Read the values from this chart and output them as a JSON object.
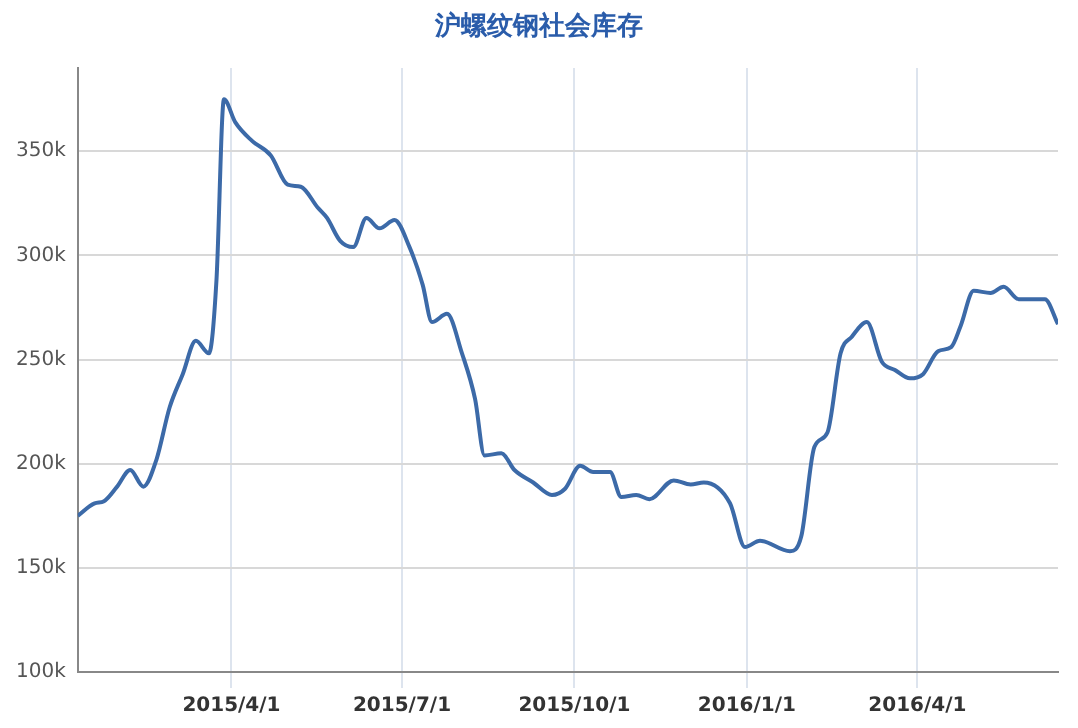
{
  "chart_data": {
    "type": "line",
    "title": "沪螺纹钢社会库存",
    "x": [
      "2015-01-09",
      "2015-01-18",
      "2015-01-23",
      "2015-01-30",
      "2015-02-06",
      "2015-02-13",
      "2015-02-20",
      "2015-02-27",
      "2015-03-06",
      "2015-03-13",
      "2015-03-20",
      "2015-03-24",
      "2015-03-28",
      "2015-04-03",
      "2015-04-12",
      "2015-04-22",
      "2015-05-01",
      "2015-05-08",
      "2015-05-17",
      "2015-05-22",
      "2015-05-29",
      "2015-06-05",
      "2015-06-12",
      "2015-06-19",
      "2015-06-27",
      "2015-07-05",
      "2015-07-12",
      "2015-07-17",
      "2015-07-25",
      "2015-08-02",
      "2015-08-09",
      "2015-08-14",
      "2015-08-23",
      "2015-08-30",
      "2015-09-09",
      "2015-09-19",
      "2015-09-26",
      "2015-10-04",
      "2015-10-11",
      "2015-10-20",
      "2015-10-26",
      "2015-11-03",
      "2015-11-10",
      "2015-11-23",
      "2015-12-02",
      "2015-12-09",
      "2015-12-23",
      "2015-12-31",
      "2016-01-08",
      "2016-01-24",
      "2016-01-30",
      "2016-02-06",
      "2016-02-13",
      "2016-02-20",
      "2016-02-26",
      "2016-03-05",
      "2016-03-13",
      "2016-03-20",
      "2016-03-28",
      "2016-04-04",
      "2016-04-12",
      "2016-04-19",
      "2016-04-24",
      "2016-05-01",
      "2016-05-10",
      "2016-05-17",
      "2016-05-25",
      "2016-06-08",
      "2016-06-15"
    ],
    "series": [
      {
        "color": "#3c6aa8",
        "values": [
          175000,
          181000,
          182000,
          189000,
          197000,
          189000,
          202000,
          227000,
          243000,
          259000,
          253000,
          288000,
          375000,
          364000,
          355000,
          348000,
          334000,
          333000,
          323000,
          318000,
          307000,
          304000,
          318000,
          313000,
          317000,
          304000,
          286000,
          268000,
          272000,
          253000,
          231000,
          204000,
          205000,
          197000,
          191000,
          185000,
          188000,
          199000,
          196000,
          196000,
          184000,
          185000,
          183000,
          192000,
          190000,
          191000,
          181000,
          160000,
          163000,
          158000,
          165000,
          208000,
          215000,
          253000,
          261000,
          268000,
          249000,
          245000,
          241000,
          243000,
          254000,
          256000,
          266000,
          283000,
          282000,
          285000,
          279000,
          279000,
          267000
        ]
      }
    ],
    "xlim": [
      "2015-01-09",
      "2016-06-15"
    ],
    "xticks": [
      {
        "value": "2015-04-01",
        "label": "2015/4/1"
      },
      {
        "value": "2015-07-01",
        "label": "2015/7/1"
      },
      {
        "value": "2015-10-01",
        "label": "2015/10/1"
      },
      {
        "value": "2016-01-01",
        "label": "2016/1/1"
      },
      {
        "value": "2016-04-01",
        "label": "2016/4/1"
      }
    ],
    "ylim": [
      100000,
      390000
    ],
    "yticks": [
      {
        "value": 100000,
        "label": "100k"
      },
      {
        "value": 150000,
        "label": "150k"
      },
      {
        "value": 200000,
        "label": "200k"
      },
      {
        "value": 250000,
        "label": "250k"
      },
      {
        "value": 300000,
        "label": "300k"
      },
      {
        "value": 350000,
        "label": "350k"
      }
    ],
    "grid": true,
    "legend": false,
    "marker": "none",
    "line_style": "solid"
  }
}
